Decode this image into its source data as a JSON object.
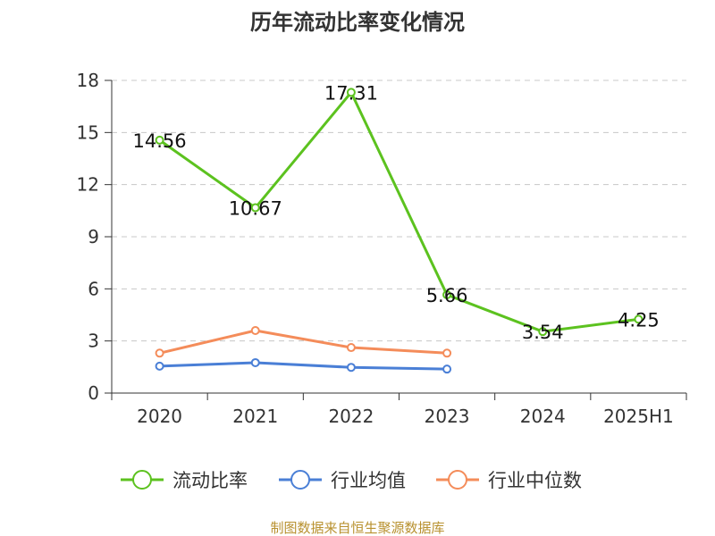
{
  "chart_data": {
    "type": "line",
    "title": "历年流动比率变化情况",
    "categories": [
      "2020",
      "2021",
      "2022",
      "2023",
      "2024",
      "2025H1"
    ],
    "y_ticks": [
      "0",
      "3",
      "6",
      "9",
      "12",
      "15",
      "18"
    ],
    "ylim": [
      0,
      18
    ],
    "grid": true,
    "legend_position": "bottom",
    "series": [
      {
        "name": "流动比率",
        "color": "#5cc21f",
        "values": [
          14.56,
          10.67,
          17.31,
          5.66,
          3.54,
          4.25
        ],
        "labels": [
          "14.56",
          "10.67",
          "17.31",
          "5.66",
          "3.54",
          "4.25"
        ]
      },
      {
        "name": "行业均值",
        "color": "#4a7fd6",
        "values": [
          1.55,
          1.75,
          1.48,
          1.38,
          null,
          null
        ]
      },
      {
        "name": "行业中位数",
        "color": "#f48c5a",
        "values": [
          2.3,
          3.6,
          2.62,
          2.3,
          null,
          null
        ]
      }
    ],
    "source": "制图数据来自恒生聚源数据库"
  }
}
